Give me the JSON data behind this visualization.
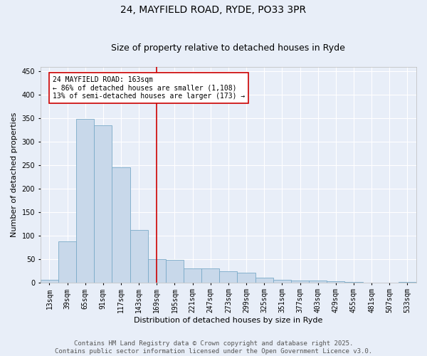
{
  "title1": "24, MAYFIELD ROAD, RYDE, PO33 3PR",
  "title2": "Size of property relative to detached houses in Ryde",
  "xlabel": "Distribution of detached houses by size in Ryde",
  "ylabel": "Number of detached properties",
  "categories": [
    "13sqm",
    "39sqm",
    "65sqm",
    "91sqm",
    "117sqm",
    "143sqm",
    "169sqm",
    "195sqm",
    "221sqm",
    "247sqm",
    "273sqm",
    "299sqm",
    "325sqm",
    "351sqm",
    "377sqm",
    "403sqm",
    "429sqm",
    "455sqm",
    "481sqm",
    "507sqm",
    "533sqm"
  ],
  "values": [
    5,
    88,
    348,
    335,
    245,
    112,
    50,
    48,
    30,
    30,
    24,
    20,
    10,
    6,
    4,
    4,
    2,
    1,
    0,
    0,
    1
  ],
  "bar_color": "#c8d8ea",
  "bar_edge_color": "#7aaac8",
  "annotation_border_color": "#cc0000",
  "vline_color": "#cc0000",
  "annotation_text_line1": "24 MAYFIELD ROAD: 163sqm",
  "annotation_text_line2": "← 86% of detached houses are smaller (1,108)",
  "annotation_text_line3": "13% of semi-detached houses are larger (173) →",
  "footer_line1": "Contains HM Land Registry data © Crown copyright and database right 2025.",
  "footer_line2": "Contains public sector information licensed under the Open Government Licence v3.0.",
  "ylim": [
    0,
    460
  ],
  "yticks": [
    0,
    50,
    100,
    150,
    200,
    250,
    300,
    350,
    400,
    450
  ],
  "background_color": "#e8eef8",
  "plot_background": "#e8eef8",
  "grid_color": "#ffffff",
  "title1_fontsize": 10,
  "title2_fontsize": 9,
  "axis_label_fontsize": 8,
  "tick_fontsize": 7,
  "annotation_fontsize": 7,
  "footer_fontsize": 6.5,
  "vline_bin": 6
}
